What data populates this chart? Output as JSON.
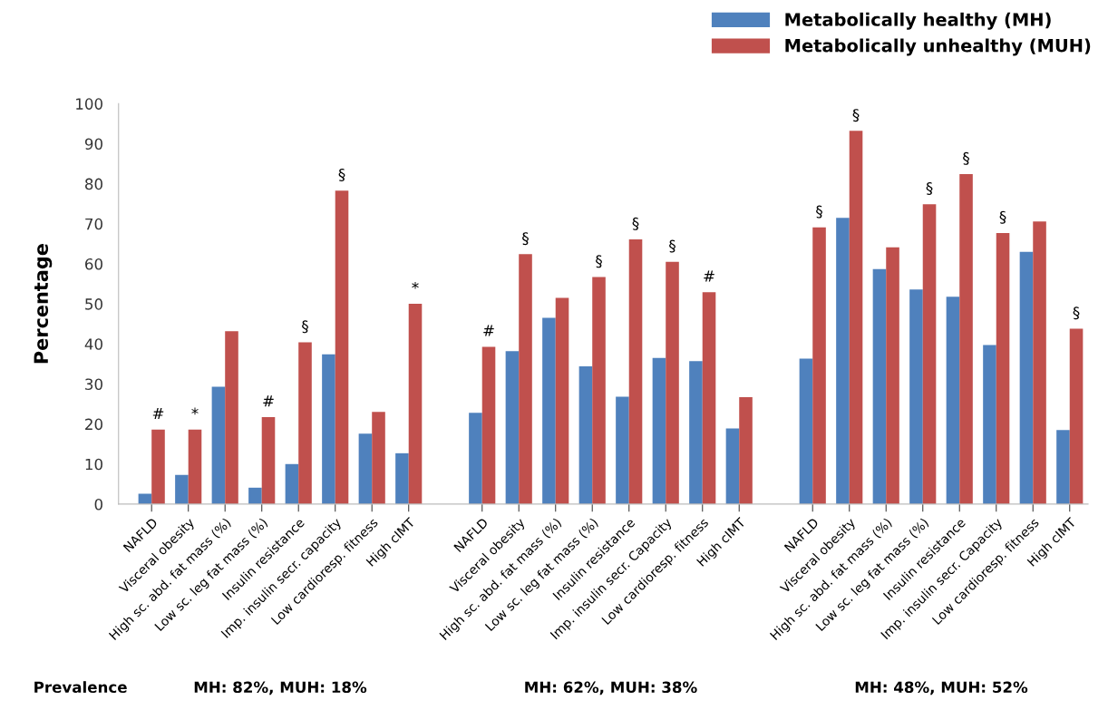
{
  "chart_data": {
    "type": "bar",
    "ylabel": "Percentage",
    "categories": [
      "NAFLD",
      "Visceral obesity",
      "High sc. abd. fat mass (%)",
      "Low sc. leg fat mass (%)",
      "Insulin resistance",
      "Imp. insulin secr. capacity",
      "Low cardioresp. fitness",
      "High cIMT",
      null,
      "NAFLD",
      "Visceral obesity",
      "High sc. abd. fat mass (%)",
      "Low sc. leg fat mass (%)",
      "Insulin resistance",
      "Imp. insulin secr. Capacity",
      "Low cardioresp. fitness",
      "High cIMT",
      null,
      "NAFLD",
      "Visceral obesity",
      "High sc. abd. fat mass (%)",
      "Low sc. leg fat mass (%)",
      "Insulin resistance",
      "Imp. insulin secr. Capacity",
      "Low cardioresp. fitness",
      "High cIMT"
    ],
    "series": [
      {
        "name": "Metabolically healthy (MH)",
        "color": "#4f81bd",
        "values": [
          2.6,
          7.3,
          29.3,
          4.1,
          10.0,
          37.4,
          17.6,
          12.7,
          null,
          22.8,
          38.2,
          46.5,
          34.4,
          26.8,
          36.5,
          35.7,
          18.9,
          null,
          36.3,
          71.5,
          58.7,
          53.6,
          51.8,
          39.7,
          63.0,
          18.5
        ]
      },
      {
        "name": "Metabolically unhealthy (MUH)",
        "color": "#c0504d",
        "values": [
          18.6,
          18.6,
          43.2,
          21.7,
          40.4,
          78.3,
          23.0,
          50.0,
          null,
          39.3,
          62.4,
          51.5,
          56.7,
          66.1,
          60.5,
          52.9,
          26.7,
          null,
          69.1,
          93.2,
          64.1,
          74.9,
          82.4,
          67.7,
          70.6,
          43.8
        ],
        "value_labels": [
          "#",
          "*",
          null,
          "#",
          "§",
          "§",
          null,
          "*",
          null,
          "#",
          "§",
          null,
          "§",
          "§",
          "§",
          "#",
          null,
          null,
          "§",
          "§",
          null,
          "§",
          "§",
          "§",
          null,
          "§"
        ]
      }
    ],
    "ylim": [
      0,
      100
    ],
    "yticks": [
      0,
      10,
      20,
      30,
      40,
      50,
      60,
      70,
      80,
      90,
      100
    ],
    "grid": false,
    "legend": "top right",
    "annotations": [
      "Prevalence",
      "MH: 82%, MUH: 18%",
      "MH: 62%, MUH: 38%",
      "MH: 48%, MUH: 52%"
    ]
  }
}
